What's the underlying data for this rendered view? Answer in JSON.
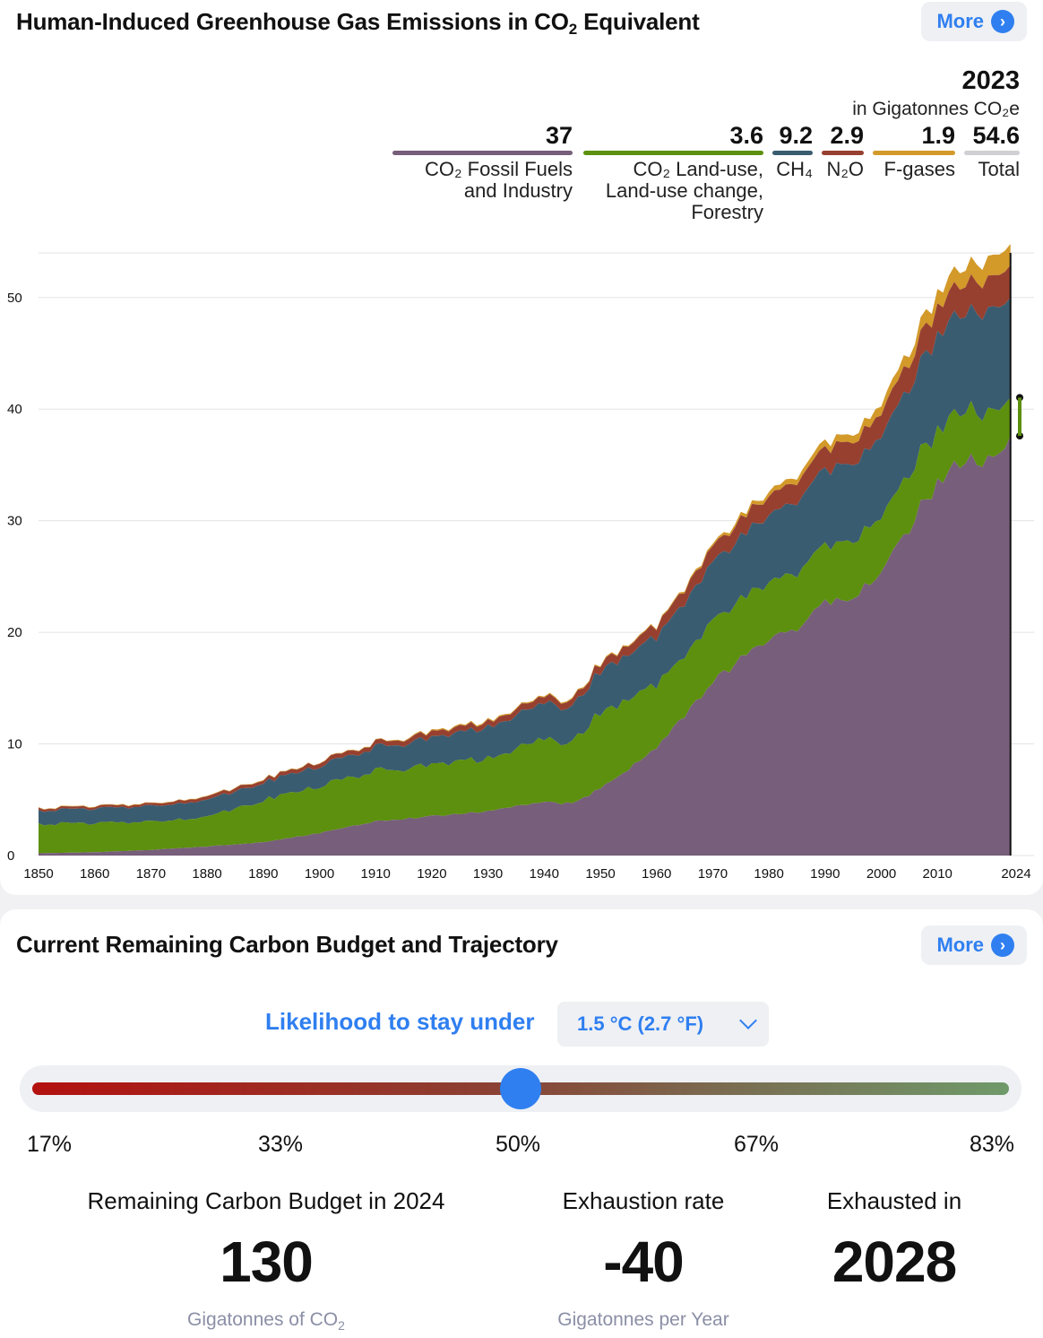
{
  "emissions": {
    "title": "Human-Induced Greenhouse Gas Emissions in CO",
    "title_sub": "2",
    "title_end": " Equivalent",
    "more_label": "More",
    "legend": {
      "year": "2023",
      "unit": "in Gigatonnes CO₂e",
      "items": [
        {
          "value": "37",
          "label1": "CO₂ Fossil Fuels",
          "label2": "and Industry",
          "label3": "",
          "color": "#775e7a"
        },
        {
          "value": "3.6",
          "label1": "CO₂ Land-use,",
          "label2": "Land-use change,",
          "label3": "Forestry",
          "color": "#5c900e"
        },
        {
          "value": "9.2",
          "label1": "CH₄",
          "label2": "",
          "label3": "",
          "color": "#3a5c70"
        },
        {
          "value": "2.9",
          "label1": "N₂O",
          "label2": "",
          "label3": "",
          "color": "#974030"
        },
        {
          "value": "1.9",
          "label1": "F-gases",
          "label2": "",
          "label3": "",
          "color": "#d39a2a"
        },
        {
          "value": "54.6",
          "label1": "Total",
          "label2": "",
          "label3": "",
          "color": "#cfcfd4"
        }
      ]
    }
  },
  "chart_data": {
    "type": "area",
    "stacked": true,
    "title": "Human-Induced Greenhouse Gas Emissions in CO2 Equivalent",
    "xlabel": "",
    "ylabel": "Gigatonnes CO2e",
    "ylim": [
      0,
      54
    ],
    "xlim": [
      1850,
      2024
    ],
    "x_ticks": [
      "1850",
      "1860",
      "1870",
      "1880",
      "1890",
      "1900",
      "1910",
      "1920",
      "1930",
      "1940",
      "1950",
      "1960",
      "1970",
      "1980",
      "1990",
      "2000",
      "2010",
      "2024"
    ],
    "y_ticks": [
      "0",
      "10",
      "20",
      "30",
      "40",
      "50"
    ],
    "x": [
      1850,
      1860,
      1870,
      1880,
      1890,
      1900,
      1910,
      1920,
      1930,
      1940,
      1945,
      1950,
      1960,
      1970,
      1975,
      1980,
      1985,
      1990,
      1995,
      2000,
      2005,
      2010,
      2015,
      2020,
      2023
    ],
    "series": [
      {
        "name": "CO₂ Fossil Fuels and Industry",
        "color": "#775e7a",
        "values": [
          0.2,
          0.3,
          0.5,
          0.8,
          1.2,
          2.0,
          3.1,
          3.5,
          4.0,
          4.8,
          4.6,
          6.0,
          9.6,
          15.5,
          17.5,
          19.5,
          20.5,
          22.5,
          23.5,
          25.0,
          29.5,
          33.5,
          35.5,
          35.0,
          37.0
        ]
      },
      {
        "name": "CO₂ Land-use, Land-use change, Forestry",
        "color": "#5c900e",
        "values": [
          2.6,
          2.6,
          2.5,
          2.7,
          3.8,
          4.2,
          4.5,
          4.6,
          4.7,
          5.6,
          5.5,
          6.8,
          5.6,
          5.6,
          5.2,
          5.1,
          5.0,
          5.2,
          5.2,
          5.0,
          4.8,
          4.8,
          4.6,
          4.2,
          3.6
        ]
      },
      {
        "name": "CH₄",
        "color": "#3a5c70",
        "values": [
          1.2,
          1.3,
          1.4,
          1.5,
          1.6,
          1.8,
          2.1,
          2.4,
          2.8,
          3.2,
          3.2,
          3.7,
          4.3,
          5.2,
          5.6,
          6.0,
          6.4,
          6.8,
          7.0,
          7.2,
          7.8,
          8.5,
          8.8,
          9.0,
          9.2
        ]
      },
      {
        "name": "N₂O",
        "color": "#974030",
        "values": [
          0.2,
          0.2,
          0.2,
          0.3,
          0.3,
          0.4,
          0.4,
          0.5,
          0.5,
          0.6,
          0.6,
          0.7,
          1.0,
          1.4,
          1.6,
          1.7,
          1.8,
          1.9,
          2.0,
          2.1,
          2.3,
          2.5,
          2.7,
          2.8,
          2.9
        ]
      },
      {
        "name": "F-gases",
        "color": "#d39a2a",
        "values": [
          0.05,
          0.05,
          0.05,
          0.05,
          0.05,
          0.05,
          0.05,
          0.1,
          0.1,
          0.1,
          0.1,
          0.1,
          0.1,
          0.2,
          0.3,
          0.4,
          0.5,
          0.6,
          0.7,
          0.8,
          1.0,
          1.3,
          1.5,
          1.8,
          1.9
        ]
      }
    ],
    "marker_year": 2023
  },
  "budget": {
    "title": "Current Remaining Carbon Budget and Trajectory",
    "more_label": "More",
    "likelihood_label": "Likelihood to stay under",
    "temperature_selected": "1.5 °C (2.7 °F)",
    "slider_value_percent": 50,
    "slider_min_percent": 17,
    "slider_max_percent": 83,
    "ticks": [
      "17%",
      "33%",
      "50%",
      "67%",
      "83%"
    ],
    "stats": {
      "remaining_label": "Remaining Carbon Budget in 2024",
      "remaining_value": "130",
      "remaining_unit": "Gigatonnes of CO",
      "remaining_unit_sub": "2",
      "rate_label": "Exhaustion rate",
      "rate_value": "-40",
      "rate_unit": "Gigatonnes per Year",
      "exhausted_label": "Exhausted in",
      "exhausted_value": "2028"
    }
  }
}
